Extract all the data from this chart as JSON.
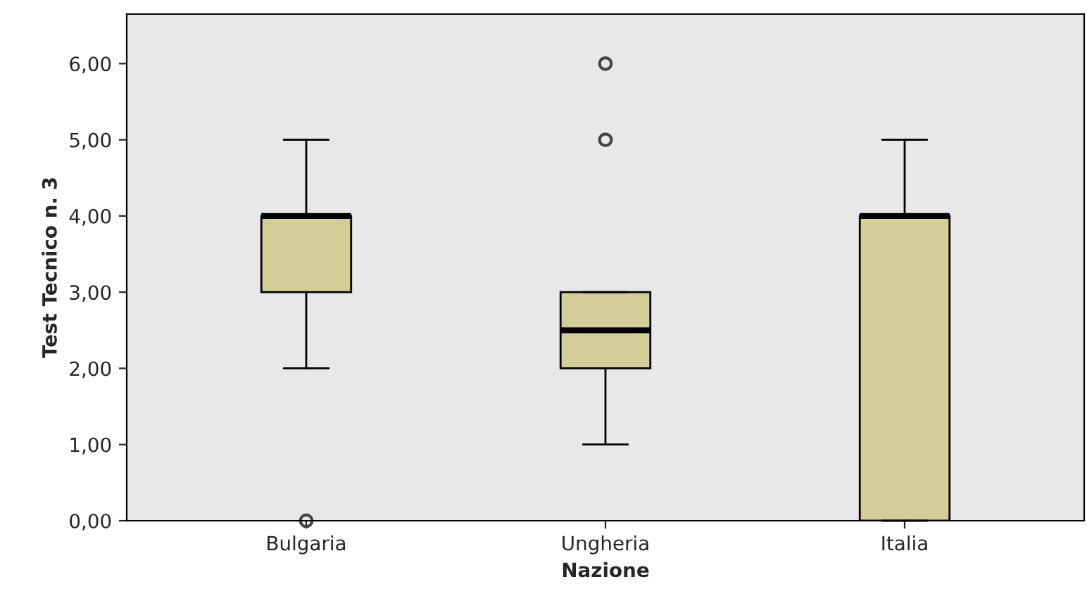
{
  "chart_data": {
    "type": "box",
    "xlabel": "Nazione",
    "ylabel": "Test Tecnico n. 3",
    "categories": [
      "Bulgaria",
      "Ungheria",
      "Italia"
    ],
    "boxes": [
      {
        "low": 2,
        "q1": 3,
        "median": 4,
        "q3": 4,
        "high": 5,
        "outliers": [
          0
        ]
      },
      {
        "low": 1,
        "q1": 2,
        "median": 2.5,
        "q3": 3,
        "high": 3,
        "outliers": [
          5,
          6
        ]
      },
      {
        "low": 0,
        "q1": 0,
        "median": 4,
        "q3": 4,
        "high": 5
      }
    ],
    "color": "#d3ce97",
    "ylim": [
      0,
      6.65
    ],
    "yticks": [
      {
        "value": 0,
        "label": "0,00"
      },
      {
        "value": 1,
        "label": "1,00"
      },
      {
        "value": 2,
        "label": "2,00"
      },
      {
        "value": 3,
        "label": "3,00"
      },
      {
        "value": 4,
        "label": "4,00"
      },
      {
        "value": 5,
        "label": "5,00"
      },
      {
        "value": 6,
        "label": "6,00"
      }
    ],
    "grid": false,
    "legend": false
  }
}
